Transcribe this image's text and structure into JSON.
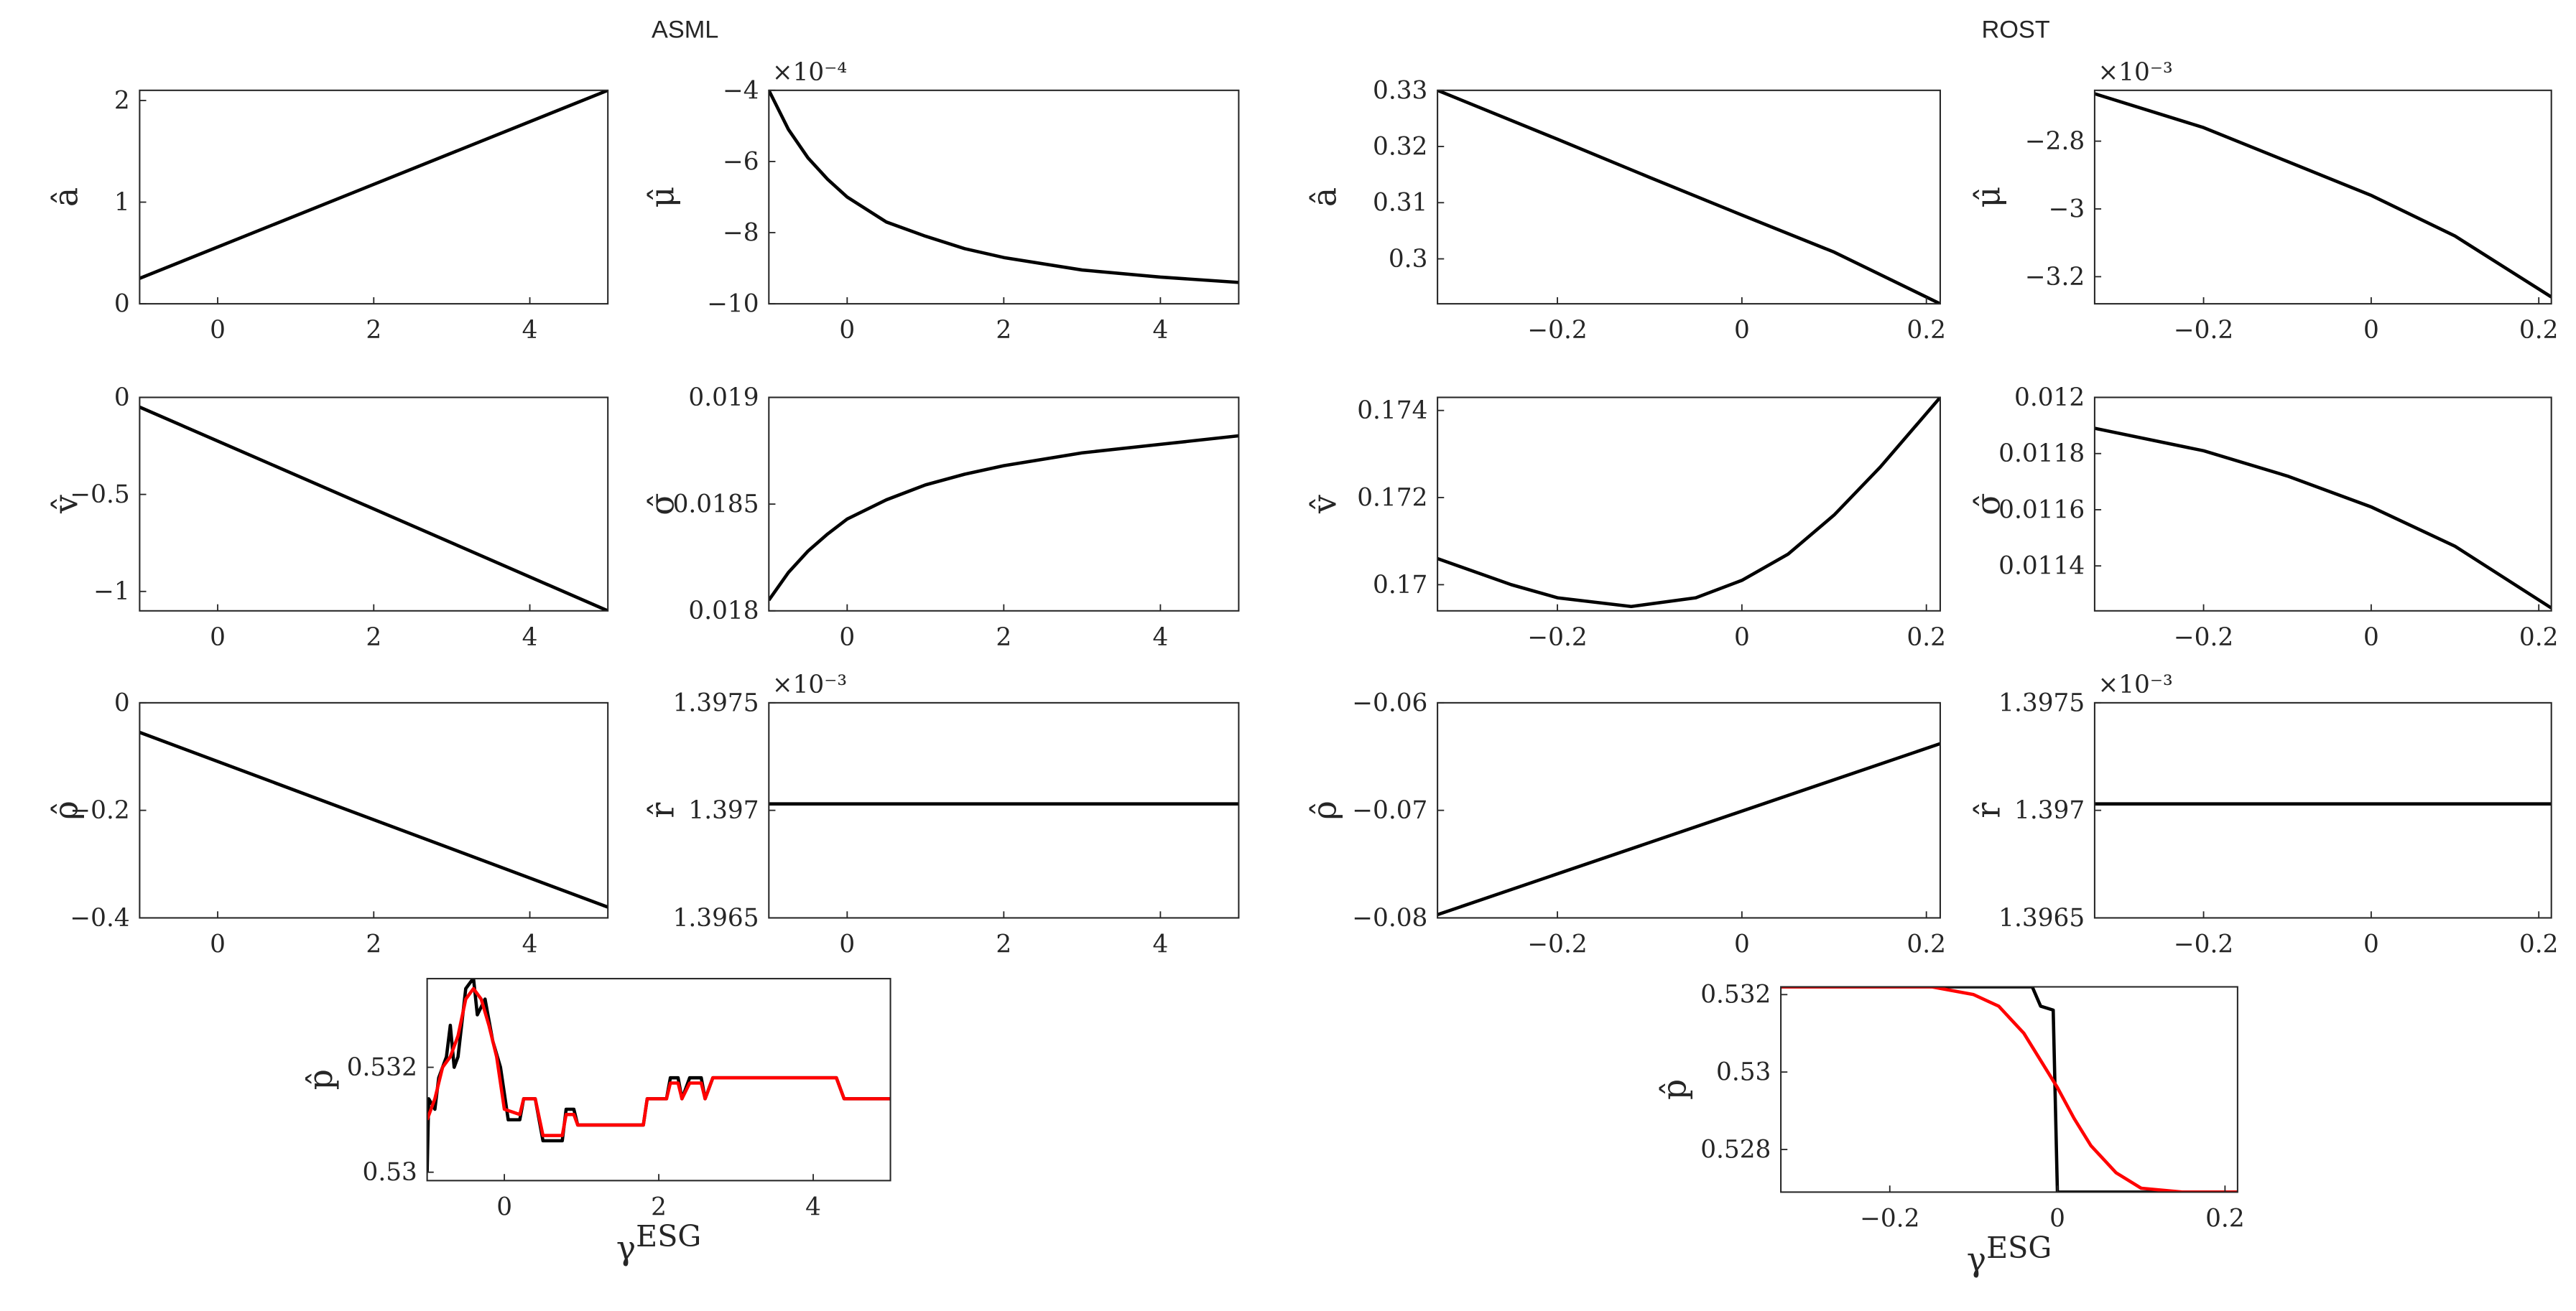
{
  "figure_titles": [
    "ASML",
    "ROST"
  ],
  "chart_data": [
    {
      "type": "line",
      "ylabel": "â",
      "xlim": [
        -1,
        5
      ],
      "ylim": [
        0,
        2.1
      ],
      "xticks": [
        0,
        2,
        4
      ],
      "yticks": [
        0,
        1,
        2
      ],
      "series": [
        {
          "color": "#000000",
          "x": [
            -1,
            5
          ],
          "values": [
            0.25,
            2.1
          ]
        }
      ]
    },
    {
      "type": "line",
      "ylabel": "μ̂",
      "exponent": "×10⁻⁴",
      "xlim": [
        -1,
        5
      ],
      "ylim": [
        -10,
        -4
      ],
      "xticks": [
        0,
        2,
        4
      ],
      "yticks": [
        {
          "value": -10,
          "label": "−10"
        },
        {
          "value": -8,
          "label": "−8"
        },
        {
          "value": -6,
          "label": "−6"
        },
        {
          "value": -4,
          "label": "−4"
        }
      ],
      "series": [
        {
          "color": "#000000",
          "x": [
            -1,
            -0.75,
            -0.5,
            -0.25,
            0,
            0.5,
            1,
            1.5,
            2,
            3,
            4,
            5
          ],
          "values": [
            -4,
            -5.1,
            -5.9,
            -6.5,
            -7,
            -7.7,
            -8.1,
            -8.45,
            -8.7,
            -9.05,
            -9.25,
            -9.4
          ]
        }
      ]
    },
    {
      "type": "line",
      "ylabel": "v̂",
      "xlim": [
        -1,
        5
      ],
      "ylim": [
        -1.1,
        0
      ],
      "xticks": [
        0,
        2,
        4
      ],
      "yticks": [
        {
          "value": -1,
          "label": "−1"
        },
        {
          "value": -0.5,
          "label": "−0.5"
        },
        0
      ],
      "series": [
        {
          "color": "#000000",
          "x": [
            -1,
            5
          ],
          "values": [
            -0.05,
            -1.1
          ]
        }
      ]
    },
    {
      "type": "line",
      "ylabel": "σ̂",
      "xlim": [
        -1,
        5
      ],
      "ylim": [
        0.018,
        0.019
      ],
      "xticks": [
        0,
        2,
        4
      ],
      "yticks": [
        0.018,
        0.0185,
        0.019
      ],
      "series": [
        {
          "color": "#000000",
          "x": [
            -1,
            -0.75,
            -0.5,
            -0.25,
            0,
            0.5,
            1,
            1.5,
            2,
            3,
            4,
            5
          ],
          "values": [
            0.01805,
            0.01818,
            0.01828,
            0.01836,
            0.01843,
            0.01852,
            0.01859,
            0.01864,
            0.01868,
            0.01874,
            0.01878,
            0.01882
          ]
        }
      ]
    },
    {
      "type": "line",
      "ylabel": "ρ̂",
      "xlim": [
        -1,
        5
      ],
      "ylim": [
        -0.4,
        0
      ],
      "xticks": [
        0,
        2,
        4
      ],
      "yticks": [
        {
          "value": -0.4,
          "label": "−0.4"
        },
        {
          "value": -0.2,
          "label": "−0.2"
        },
        0
      ],
      "series": [
        {
          "color": "#000000",
          "x": [
            -1,
            5
          ],
          "values": [
            -0.055,
            -0.38
          ]
        }
      ]
    },
    {
      "type": "line",
      "ylabel": "r̂",
      "exponent": "×10⁻³",
      "xlim": [
        -1,
        5
      ],
      "ylim": [
        1.3965,
        1.3975
      ],
      "xticks": [
        0,
        2,
        4
      ],
      "yticks": [
        1.3965,
        1.397,
        1.3975
      ],
      "series": [
        {
          "color": "#000000",
          "x": [
            -1,
            5
          ],
          "values": [
            1.39703,
            1.39703
          ]
        }
      ]
    },
    {
      "type": "line",
      "ylabel": "â",
      "xlim": [
        -0.33,
        0.215
      ],
      "ylim": [
        0.292,
        0.33
      ],
      "xticks": [
        {
          "value": -0.2,
          "label": "−0.2"
        },
        0,
        0.2
      ],
      "yticks": [
        0.3,
        0.31,
        0.32,
        0.33
      ],
      "series": [
        {
          "color": "#000000",
          "x": [
            -0.33,
            -0.2,
            -0.1,
            0,
            0.1,
            0.215
          ],
          "values": [
            0.33,
            0.3213,
            0.3145,
            0.3078,
            0.3012,
            0.292
          ]
        }
      ]
    },
    {
      "type": "line",
      "ylabel": "μ̂",
      "exponent": "×10⁻³",
      "xlim": [
        -0.33,
        0.215
      ],
      "ylim": [
        -3.28,
        -2.65
      ],
      "xticks": [
        {
          "value": -0.2,
          "label": "−0.2"
        },
        0,
        0.2
      ],
      "yticks": [
        {
          "value": -3.2,
          "label": "−3.2"
        },
        {
          "value": -3,
          "label": "−3"
        },
        {
          "value": -2.8,
          "label": "−2.8"
        }
      ],
      "series": [
        {
          "color": "#000000",
          "x": [
            -0.33,
            -0.2,
            -0.1,
            0,
            0.1,
            0.215
          ],
          "values": [
            -2.66,
            -2.76,
            -2.86,
            -2.96,
            -3.08,
            -3.26
          ]
        }
      ]
    },
    {
      "type": "line",
      "ylabel": "v̂",
      "xlim": [
        -0.33,
        0.215
      ],
      "ylim": [
        0.1694,
        0.1743
      ],
      "xticks": [
        {
          "value": -0.2,
          "label": "−0.2"
        },
        0,
        0.2
      ],
      "yticks": [
        0.17,
        0.172,
        0.174
      ],
      "series": [
        {
          "color": "#000000",
          "x": [
            -0.33,
            -0.25,
            -0.2,
            -0.12,
            -0.05,
            0,
            0.05,
            0.1,
            0.15,
            0.215
          ],
          "values": [
            0.1706,
            0.17,
            0.1697,
            0.1695,
            0.1697,
            0.1701,
            0.1707,
            0.1716,
            0.1727,
            0.1743
          ]
        }
      ]
    },
    {
      "type": "line",
      "ylabel": "σ̂",
      "xlim": [
        -0.33,
        0.215
      ],
      "ylim": [
        0.01124,
        0.012
      ],
      "xticks": [
        {
          "value": -0.2,
          "label": "−0.2"
        },
        0,
        0.2
      ],
      "yticks": [
        0.0114,
        0.0116,
        0.0118,
        0.012
      ],
      "series": [
        {
          "color": "#000000",
          "x": [
            -0.33,
            -0.2,
            -0.1,
            0,
            0.1,
            0.215
          ],
          "values": [
            0.01189,
            0.01181,
            0.01172,
            0.01161,
            0.01147,
            0.01125
          ]
        }
      ]
    },
    {
      "type": "line",
      "ylabel": "ρ̂",
      "xlim": [
        -0.33,
        0.215
      ],
      "ylim": [
        -0.08,
        -0.06
      ],
      "xticks": [
        {
          "value": -0.2,
          "label": "−0.2"
        },
        0,
        0.2
      ],
      "yticks": [
        {
          "value": -0.08,
          "label": "−0.08"
        },
        {
          "value": -0.07,
          "label": "−0.07"
        },
        {
          "value": -0.06,
          "label": "−0.06"
        }
      ],
      "series": [
        {
          "color": "#000000",
          "x": [
            -0.33,
            0.215
          ],
          "values": [
            -0.0797,
            -0.0638
          ]
        }
      ]
    },
    {
      "type": "line",
      "ylabel": "r̂",
      "exponent": "×10⁻³",
      "xlim": [
        -0.33,
        0.215
      ],
      "ylim": [
        1.3965,
        1.3975
      ],
      "xticks": [
        {
          "value": -0.2,
          "label": "−0.2"
        },
        0,
        0.2
      ],
      "yticks": [
        1.3965,
        1.397,
        1.3975
      ],
      "series": [
        {
          "color": "#000000",
          "x": [
            -0.33,
            0.215
          ],
          "values": [
            1.39703,
            1.39703
          ]
        }
      ]
    },
    {
      "type": "line",
      "ylabel": "p̂",
      "xlabel": {
        "base": "γ",
        "sup": "ESG"
      },
      "xlim": [
        -1,
        5
      ],
      "ylim": [
        0.52984,
        0.53369
      ],
      "xticks": [
        0,
        2,
        4
      ],
      "yticks": [
        0.53,
        0.532
      ],
      "series": [
        {
          "color": "#000000",
          "x": [
            -1,
            -0.98,
            -0.9,
            -0.85,
            -0.75,
            -0.7,
            -0.65,
            -0.6,
            -0.5,
            -0.4,
            -0.35,
            -0.25,
            -0.15,
            -0.05,
            0.05,
            0.2,
            0.25,
            0.4,
            0.5,
            0.75,
            0.8,
            0.9,
            0.95,
            1.8,
            1.85,
            2.1,
            2.15,
            2.25,
            2.3,
            2.4,
            2.55,
            2.6,
            2.7,
            4.3,
            4.4,
            5
          ],
          "values": [
            0.53,
            0.5314,
            0.5312,
            0.5318,
            0.5322,
            0.5328,
            0.532,
            0.5322,
            0.5335,
            0.5337,
            0.533,
            0.5333,
            0.5325,
            0.532,
            0.531,
            0.531,
            0.5314,
            0.5314,
            0.5306,
            0.5306,
            0.5312,
            0.5312,
            0.5309,
            0.5309,
            0.5314,
            0.5314,
            0.5318,
            0.5318,
            0.5314,
            0.5318,
            0.5318,
            0.5314,
            0.5318,
            0.5318,
            0.5314,
            0.5314
          ]
        },
        {
          "color": "#ff0000",
          "x": [
            -1,
            -0.9,
            -0.8,
            -0.7,
            -0.6,
            -0.5,
            -0.4,
            -0.3,
            -0.2,
            -0.1,
            0,
            0.2,
            0.25,
            0.4,
            0.5,
            0.75,
            0.8,
            0.9,
            0.95,
            1.8,
            1.85,
            2.1,
            2.15,
            2.25,
            2.3,
            2.4,
            2.55,
            2.6,
            2.7,
            4.3,
            4.4,
            5
          ],
          "values": [
            0.531,
            0.5314,
            0.532,
            0.5322,
            0.5326,
            0.5333,
            0.5335,
            0.5333,
            0.5328,
            0.5322,
            0.5312,
            0.5311,
            0.5314,
            0.5314,
            0.5307,
            0.5307,
            0.5311,
            0.5311,
            0.5309,
            0.5309,
            0.5314,
            0.5314,
            0.5317,
            0.5317,
            0.5314,
            0.5317,
            0.5317,
            0.5314,
            0.5318,
            0.5318,
            0.5314,
            0.5314
          ]
        }
      ]
    },
    {
      "type": "line",
      "ylabel": "p̂",
      "xlabel": {
        "base": "γ",
        "sup": "ESG"
      },
      "xlim": [
        -0.33,
        0.215
      ],
      "ylim": [
        0.5269,
        0.5322
      ],
      "xticks": [
        {
          "value": -0.2,
          "label": "−0.2"
        },
        0,
        0.2
      ],
      "yticks": [
        0.528,
        0.53,
        0.532
      ],
      "series": [
        {
          "color": "#000000",
          "x": [
            -0.33,
            -0.03,
            -0.02,
            -0.005,
            0,
            0.215
          ],
          "values": [
            0.5322,
            0.5322,
            0.5317,
            0.5316,
            0.5269,
            0.5269
          ]
        },
        {
          "color": "#ff0000",
          "x": [
            -0.33,
            -0.15,
            -0.1,
            -0.07,
            -0.04,
            -0.02,
            0,
            0.02,
            0.04,
            0.07,
            0.1,
            0.15,
            0.215
          ],
          "values": [
            0.5322,
            0.5322,
            0.532,
            0.5317,
            0.531,
            0.5303,
            0.5296,
            0.5288,
            0.5281,
            0.5274,
            0.527,
            0.5269,
            0.5269
          ]
        }
      ]
    }
  ]
}
